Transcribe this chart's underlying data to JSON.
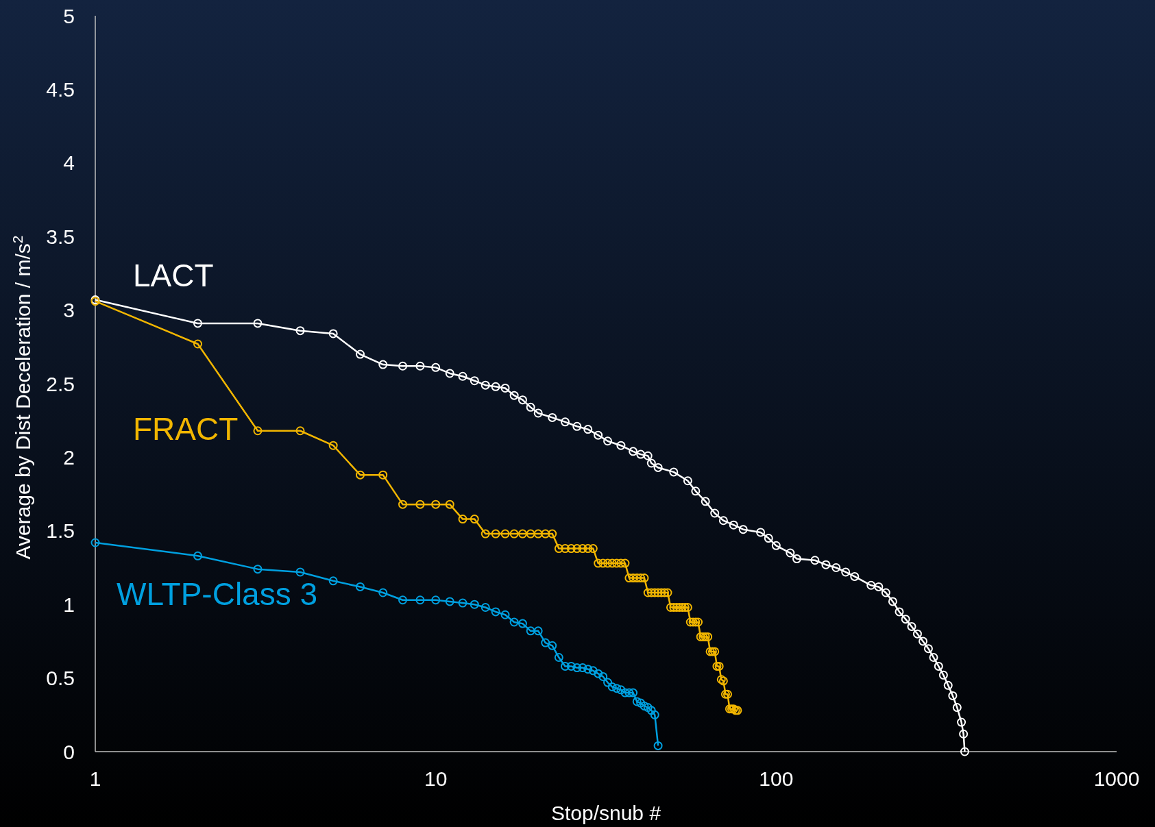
{
  "chart_data": {
    "type": "line",
    "xlabel": "Stop/snub #",
    "ylabel": "Average by Dist Deceleration / m/s$^{2}$",
    "log": "x",
    "xlim": [
      1,
      1000
    ],
    "xticks": [
      1,
      10,
      100,
      1000
    ],
    "ylim": [
      0,
      5
    ],
    "yticks": [
      0,
      0.5,
      1,
      1.5,
      2,
      2.5,
      3,
      3.5,
      4,
      4.5,
      5
    ],
    "grid": false,
    "marker": "circle",
    "line_style": "solid",
    "series": [
      {
        "name": "LACT",
        "color": "#ffffff",
        "x": [
          1,
          2,
          3,
          4,
          5,
          6,
          7,
          8,
          9,
          10,
          11,
          12,
          13,
          14,
          15,
          16,
          17,
          18,
          19,
          20,
          22,
          24,
          26,
          28,
          30,
          32,
          35,
          38,
          40,
          42,
          43,
          45,
          50,
          55,
          58,
          62,
          66,
          70,
          75,
          80,
          90,
          95,
          100,
          110,
          115,
          130,
          140,
          150,
          160,
          170,
          190,
          200,
          210,
          220,
          230,
          240,
          250,
          260,
          270,
          280,
          290,
          300,
          310,
          320,
          330,
          340,
          350,
          355,
          358
        ],
        "values": [
          3.07,
          2.91,
          2.91,
          2.86,
          2.84,
          2.7,
          2.63,
          2.62,
          2.62,
          2.61,
          2.57,
          2.55,
          2.52,
          2.49,
          2.48,
          2.47,
          2.42,
          2.39,
          2.34,
          2.3,
          2.27,
          2.24,
          2.21,
          2.19,
          2.15,
          2.11,
          2.08,
          2.04,
          2.02,
          2.01,
          1.96,
          1.93,
          1.9,
          1.84,
          1.77,
          1.7,
          1.62,
          1.57,
          1.54,
          1.51,
          1.49,
          1.45,
          1.4,
          1.35,
          1.31,
          1.3,
          1.27,
          1.25,
          1.22,
          1.19,
          1.13,
          1.12,
          1.08,
          1.02,
          0.95,
          0.9,
          0.85,
          0.8,
          0.75,
          0.7,
          0.64,
          0.58,
          0.52,
          0.45,
          0.38,
          0.3,
          0.2,
          0.12,
          0
        ]
      },
      {
        "name": "FRACT",
        "color": "#f2b600",
        "x": [
          1,
          2,
          3,
          4,
          5,
          6,
          7,
          8,
          9,
          10,
          11,
          12,
          13,
          14,
          15,
          16,
          17,
          18,
          19,
          20,
          21,
          22,
          23,
          24,
          25,
          26,
          27,
          28,
          29,
          30,
          31,
          32,
          33,
          34,
          35,
          36,
          37,
          38,
          39,
          40,
          41,
          42,
          43,
          44,
          45,
          46,
          47,
          48,
          49,
          50,
          51,
          52,
          53,
          54,
          55,
          56,
          57,
          58,
          59,
          60,
          61,
          62,
          63,
          64,
          65,
          66,
          67,
          68,
          69,
          70,
          71,
          72,
          73,
          74,
          75,
          76,
          77
        ],
        "values": [
          3.06,
          2.77,
          2.18,
          2.18,
          2.08,
          1.88,
          1.88,
          1.68,
          1.68,
          1.68,
          1.68,
          1.58,
          1.58,
          1.48,
          1.48,
          1.48,
          1.48,
          1.48,
          1.48,
          1.48,
          1.48,
          1.48,
          1.38,
          1.38,
          1.38,
          1.38,
          1.38,
          1.38,
          1.38,
          1.28,
          1.28,
          1.28,
          1.28,
          1.28,
          1.28,
          1.28,
          1.18,
          1.18,
          1.18,
          1.18,
          1.18,
          1.08,
          1.08,
          1.08,
          1.08,
          1.08,
          1.08,
          1.08,
          0.98,
          0.98,
          0.98,
          0.98,
          0.98,
          0.98,
          0.98,
          0.88,
          0.88,
          0.88,
          0.88,
          0.78,
          0.78,
          0.78,
          0.78,
          0.68,
          0.68,
          0.68,
          0.58,
          0.58,
          0.49,
          0.48,
          0.39,
          0.39,
          0.29,
          0.29,
          0.29,
          0.28,
          0.28
        ]
      },
      {
        "name": "WLTP-Class 3",
        "color": "#00a0e0",
        "x": [
          1,
          2,
          3,
          4,
          5,
          6,
          7,
          8,
          9,
          10,
          11,
          12,
          13,
          14,
          15,
          16,
          17,
          18,
          19,
          20,
          21,
          22,
          23,
          24,
          25,
          26,
          27,
          28,
          29,
          30,
          31,
          32,
          33,
          34,
          35,
          36,
          37,
          38,
          39,
          40,
          41,
          42,
          43,
          44,
          45
        ],
        "values": [
          1.42,
          1.33,
          1.24,
          1.22,
          1.16,
          1.12,
          1.08,
          1.03,
          1.03,
          1.03,
          1.02,
          1.01,
          1.0,
          0.98,
          0.95,
          0.93,
          0.88,
          0.87,
          0.82,
          0.82,
          0.74,
          0.72,
          0.64,
          0.58,
          0.58,
          0.57,
          0.57,
          0.56,
          0.55,
          0.53,
          0.51,
          0.47,
          0.44,
          0.43,
          0.42,
          0.4,
          0.4,
          0.4,
          0.34,
          0.33,
          0.31,
          0.3,
          0.28,
          0.25,
          0.04
        ]
      }
    ]
  }
}
